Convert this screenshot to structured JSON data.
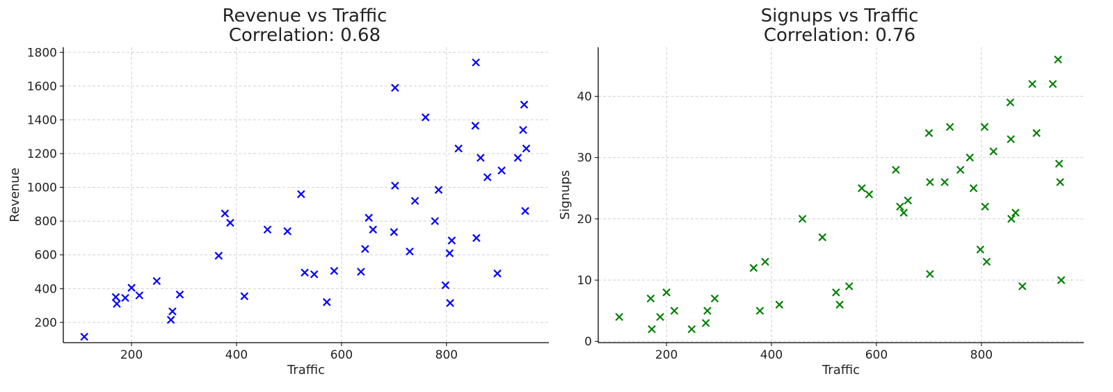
{
  "chart_data": [
    {
      "type": "scatter",
      "title": "Revenue vs Traffic",
      "subtitle": "Correlation: 0.68",
      "xlabel": "Traffic",
      "ylabel": "Revenue",
      "xlim": [
        70,
        995
      ],
      "ylim": [
        80,
        1830
      ],
      "xticks": [
        200,
        400,
        600,
        800
      ],
      "yticks": [
        200,
        400,
        600,
        800,
        1000,
        1200,
        1400,
        1600,
        1800
      ],
      "grid": true,
      "marker": "x",
      "color": "#0000ff",
      "series": [
        {
          "x": [
            110,
            170,
            172,
            188,
            200,
            215,
            248,
            275,
            278,
            292,
            366,
            378,
            388,
            415,
            459,
            497,
            523,
            530,
            548,
            572,
            586,
            637,
            645,
            652,
            660,
            700,
            702,
            702,
            730,
            740,
            760,
            778,
            785,
            798,
            806,
            807,
            810,
            823,
            855,
            856,
            857,
            865,
            878,
            897,
            905,
            936,
            946,
            948,
            950,
            952
          ],
          "y": [
            115,
            350,
            310,
            345,
            405,
            360,
            445,
            215,
            265,
            365,
            595,
            845,
            790,
            355,
            750,
            740,
            960,
            495,
            485,
            320,
            505,
            500,
            635,
            820,
            750,
            735,
            1010,
            1590,
            620,
            920,
            1415,
            800,
            985,
            420,
            610,
            315,
            685,
            1230,
            1365,
            1740,
            700,
            1175,
            1060,
            490,
            1100,
            1175,
            1340,
            1490,
            860,
            1230
          ]
        }
      ]
    },
    {
      "type": "scatter",
      "title": "Signups vs Traffic",
      "subtitle": "Correlation: 0.76",
      "xlabel": "Traffic",
      "ylabel": "Signups",
      "xlim": [
        70,
        995
      ],
      "ylim": [
        -0.2,
        48
      ],
      "xticks": [
        200,
        400,
        600,
        800
      ],
      "yticks": [
        0,
        10,
        20,
        30,
        40
      ],
      "grid": true,
      "marker": "x",
      "color": "#008000",
      "series": [
        {
          "x": [
            110,
            170,
            172,
            188,
            200,
            215,
            248,
            275,
            278,
            292,
            366,
            378,
            388,
            415,
            459,
            497,
            523,
            530,
            548,
            572,
            586,
            637,
            645,
            652,
            660,
            700,
            702,
            702,
            730,
            740,
            760,
            778,
            785,
            798,
            806,
            807,
            810,
            823,
            855,
            856,
            857,
            865,
            878,
            897,
            905,
            936,
            946,
            948,
            950,
            952
          ],
          "y": [
            4,
            7,
            2,
            4,
            8,
            5,
            2,
            3,
            5,
            7,
            12,
            5,
            13,
            6,
            20,
            17,
            8,
            6,
            9,
            25,
            24,
            28,
            22,
            21,
            23,
            34,
            26,
            11,
            26,
            35,
            28,
            30,
            25,
            15,
            35,
            22,
            13,
            31,
            39,
            33,
            20,
            21,
            9,
            42,
            34,
            42,
            46,
            29,
            26,
            10
          ]
        }
      ]
    }
  ]
}
